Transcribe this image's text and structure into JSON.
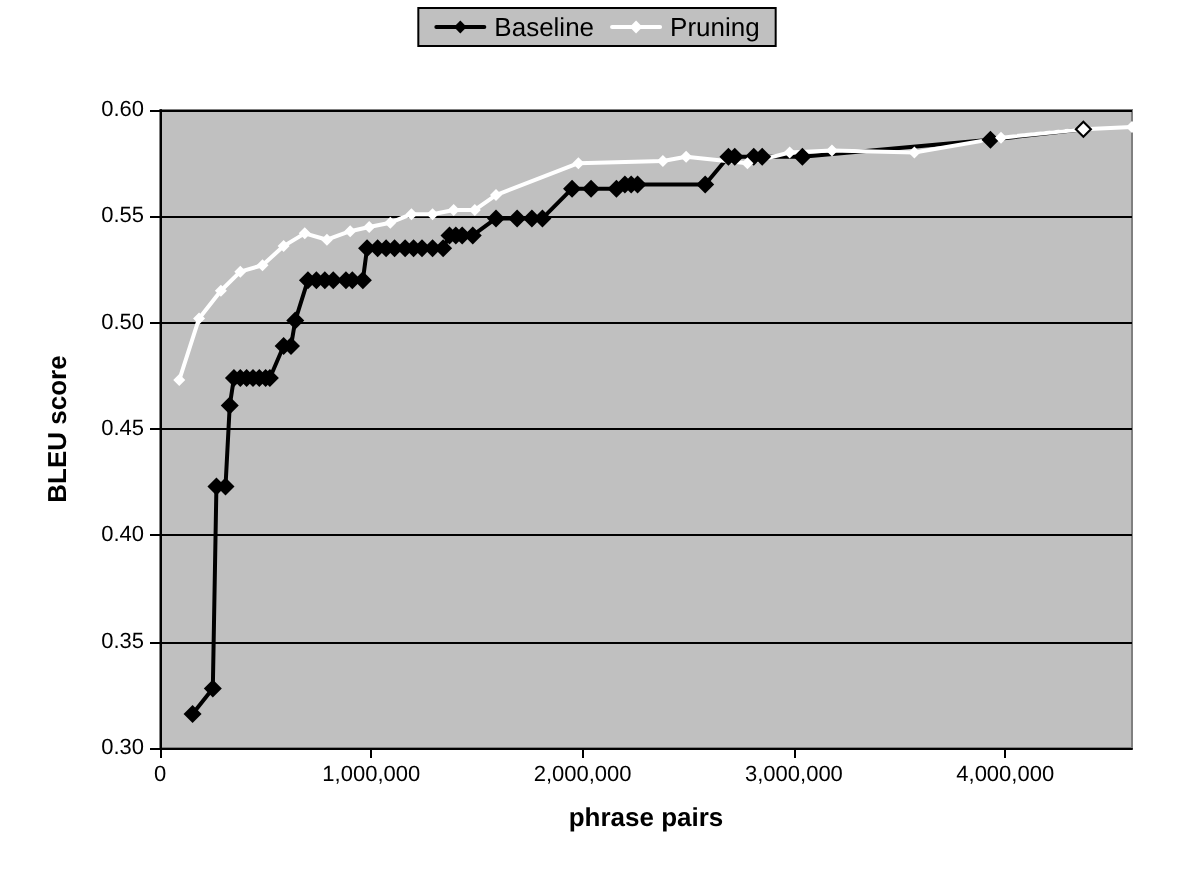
{
  "chart_data": {
    "type": "line",
    "xlabel": "phrase pairs",
    "ylabel": "BLEU score",
    "xlim": [
      0,
      4600000
    ],
    "xticks": [
      {
        "value": 0,
        "label": "0"
      },
      {
        "value": 1000000,
        "label": "1,000,000"
      },
      {
        "value": 2000000,
        "label": "2,000,000"
      },
      {
        "value": 3000000,
        "label": "3,000,000"
      },
      {
        "value": 4000000,
        "label": "4,000,000"
      }
    ],
    "ylim": [
      0.3,
      0.6
    ],
    "yticks": [
      {
        "value": 0.3,
        "label": "0.30"
      },
      {
        "value": 0.35,
        "label": "0.35"
      },
      {
        "value": 0.4,
        "label": "0.40"
      },
      {
        "value": 0.45,
        "label": "0.45"
      },
      {
        "value": 0.5,
        "label": "0.50"
      },
      {
        "value": 0.55,
        "label": "0.55"
      },
      {
        "value": 0.6,
        "label": "0.60"
      }
    ],
    "grid": "y",
    "legend": "top",
    "marker": "diamond",
    "line_style": "solid",
    "series": [
      {
        "name": "Baseline",
        "color": "#000000",
        "x": [
          154000,
          250000,
          267000,
          310000,
          330000,
          350000,
          380000,
          410000,
          440000,
          470000,
          500000,
          520000,
          585000,
          620000,
          640000,
          700000,
          740000,
          780000,
          820000,
          880000,
          910000,
          960000,
          980000,
          1030000,
          1070000,
          1110000,
          1160000,
          1200000,
          1240000,
          1290000,
          1340000,
          1370000,
          1400000,
          1430000,
          1480000,
          1590000,
          1690000,
          1760000,
          1810000,
          1950000,
          2040000,
          2160000,
          2200000,
          2230000,
          2260000,
          2580000,
          2690000,
          2720000,
          2810000,
          2850000,
          3040000,
          3930000,
          4370000
        ],
        "values": [
          0.316,
          0.328,
          0.423,
          0.423,
          0.461,
          0.474,
          0.474,
          0.474,
          0.474,
          0.474,
          0.474,
          0.474,
          0.489,
          0.489,
          0.501,
          0.52,
          0.52,
          0.52,
          0.52,
          0.52,
          0.52,
          0.52,
          0.535,
          0.535,
          0.535,
          0.535,
          0.535,
          0.535,
          0.535,
          0.535,
          0.535,
          0.541,
          0.541,
          0.541,
          0.541,
          0.549,
          0.549,
          0.549,
          0.549,
          0.563,
          0.563,
          0.563,
          0.565,
          0.565,
          0.565,
          0.565,
          0.578,
          0.578,
          0.578,
          0.578,
          0.578,
          0.586,
          0.591
        ]
      },
      {
        "name": "Pruning",
        "color": "#ffffff",
        "x": [
          91000,
          185000,
          288000,
          380000,
          485000,
          585000,
          685000,
          790000,
          900000,
          990000,
          1090000,
          1190000,
          1290000,
          1390000,
          1490000,
          1590000,
          1980000,
          2380000,
          2490000,
          2780000,
          2980000,
          3180000,
          3570000,
          3980000,
          4370000,
          4600000
        ],
        "values": [
          0.473,
          0.502,
          0.515,
          0.524,
          0.527,
          0.536,
          0.542,
          0.539,
          0.543,
          0.545,
          0.547,
          0.551,
          0.551,
          0.553,
          0.553,
          0.56,
          0.575,
          0.576,
          0.578,
          0.575,
          0.58,
          0.581,
          0.58,
          0.587,
          0.591,
          0.592
        ]
      }
    ]
  }
}
